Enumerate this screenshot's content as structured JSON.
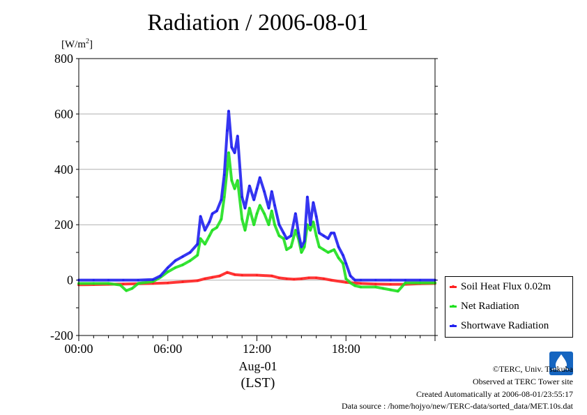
{
  "chart_data": {
    "type": "line",
    "title": "Radiation / 2006-08-01",
    "ylabel": "[W/m2]",
    "ylabel_base": "[W/m",
    "ylabel_sup": "2",
    "ylabel_end": "]",
    "xlabel": "Aug-01",
    "xlabel2": "(LST)",
    "ylim": [
      -200,
      800
    ],
    "xlim": [
      0,
      24
    ],
    "yticks": [
      -200,
      0,
      200,
      400,
      600,
      800
    ],
    "xticks": [
      "00:00",
      "06:00",
      "12:00",
      "18:00"
    ],
    "xtick_hours": [
      0,
      6,
      12,
      18
    ],
    "grid": "horizontal",
    "legend_position": "bottom-right-outside",
    "series": [
      {
        "name": "Soil Heat Flux 0.02m",
        "color": "#ff2020",
        "x": [
          0,
          1,
          2,
          3,
          4,
          5,
          6,
          7,
          8,
          8.5,
          9,
          9.5,
          10,
          10.5,
          11,
          12,
          13,
          13.5,
          14,
          14.5,
          15,
          15.5,
          16,
          16.5,
          17,
          18,
          19,
          20,
          21,
          22,
          23,
          24
        ],
        "y": [
          -17,
          -16,
          -15,
          -14,
          -13,
          -12,
          -10,
          -6,
          -2,
          5,
          10,
          15,
          28,
          20,
          18,
          18,
          15,
          8,
          5,
          3,
          5,
          8,
          8,
          5,
          0,
          -8,
          -12,
          -14,
          -15,
          -15,
          -13,
          -12
        ]
      },
      {
        "name": "Net Radiation",
        "color": "#20e020",
        "x": [
          0,
          1,
          2,
          2.8,
          3.2,
          3.6,
          4,
          5,
          5.5,
          6,
          6.5,
          7,
          7.5,
          8,
          8.2,
          8.5,
          8.8,
          9,
          9.3,
          9.6,
          9.8,
          10,
          10.1,
          10.3,
          10.5,
          10.7,
          11,
          11.2,
          11.5,
          11.8,
          12,
          12.2,
          12.5,
          12.8,
          13,
          13.2,
          13.5,
          13.8,
          14,
          14.3,
          14.6,
          14.8,
          15,
          15.2,
          15.4,
          15.6,
          15.8,
          16,
          16.2,
          16.5,
          16.8,
          17,
          17.2,
          17.5,
          17.8,
          18,
          18.3,
          18.6,
          19,
          20,
          20.5,
          21,
          21.5,
          22,
          23,
          24
        ],
        "y": [
          -12,
          -12,
          -12,
          -18,
          -38,
          -30,
          -12,
          -5,
          10,
          30,
          45,
          55,
          70,
          90,
          150,
          130,
          160,
          180,
          190,
          220,
          300,
          400,
          460,
          360,
          330,
          360,
          220,
          180,
          260,
          200,
          240,
          270,
          240,
          200,
          250,
          200,
          160,
          150,
          110,
          120,
          180,
          150,
          100,
          120,
          200,
          180,
          210,
          160,
          120,
          110,
          100,
          105,
          110,
          80,
          60,
          5,
          -10,
          -20,
          -25,
          -25,
          -30,
          -35,
          -40,
          -10,
          -10,
          -10
        ]
      },
      {
        "name": "Shortwave Radiation",
        "color": "#2020f0",
        "x": [
          0,
          1,
          2,
          3,
          4,
          5,
          5.5,
          6,
          6.5,
          7,
          7.5,
          8,
          8.2,
          8.5,
          8.8,
          9,
          9.3,
          9.6,
          9.8,
          10,
          10.1,
          10.3,
          10.5,
          10.7,
          11,
          11.2,
          11.5,
          11.8,
          12,
          12.2,
          12.5,
          12.8,
          13,
          13.2,
          13.5,
          13.8,
          14,
          14.3,
          14.6,
          14.8,
          15,
          15.2,
          15.4,
          15.6,
          15.8,
          16,
          16.2,
          16.5,
          16.8,
          17,
          17.2,
          17.5,
          17.8,
          18,
          18.3,
          18.6,
          19,
          20,
          21,
          22,
          23,
          24
        ],
        "y": [
          0,
          0,
          0,
          0,
          0,
          2,
          15,
          45,
          70,
          85,
          100,
          130,
          230,
          180,
          210,
          240,
          250,
          290,
          380,
          540,
          610,
          480,
          460,
          520,
          300,
          260,
          340,
          290,
          330,
          370,
          320,
          260,
          320,
          270,
          200,
          170,
          150,
          160,
          240,
          170,
          120,
          140,
          300,
          200,
          280,
          230,
          170,
          160,
          150,
          170,
          170,
          120,
          90,
          60,
          15,
          0,
          0,
          0,
          0,
          0,
          0,
          0
        ]
      }
    ]
  },
  "footer": {
    "copyright": "©TERC, Univ. Tsukuba",
    "observed": "Observed at TERC Tower site",
    "created": "Created Automatically at 2006-08-01/23:55:17",
    "source": "Data source : /home/hojyo/new/TERC-data/sorted_data/MET.10s.dat"
  },
  "logo": {
    "name": "terc-logo",
    "color": "#1565c0"
  }
}
